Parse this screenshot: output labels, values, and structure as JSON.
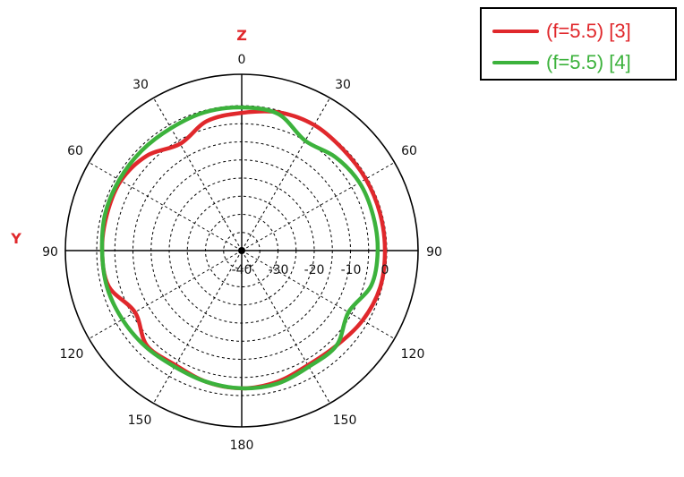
{
  "chart_data": {
    "type": "polar-line",
    "axis_names": {
      "top": "Z",
      "left": "Y"
    },
    "angle_labels": {
      "top": "0",
      "bottom": "180",
      "left_side": [
        "30",
        "60",
        "90",
        "120",
        "150"
      ],
      "right_side": [
        "30",
        "60",
        "90",
        "120",
        "150"
      ]
    },
    "radial_ticks": [
      "-40",
      "-30",
      "-20",
      "-10",
      "0"
    ],
    "r_range_db": [
      -40,
      0
    ],
    "grid": true,
    "legend_position": "top-right",
    "angle_deg": [
      0,
      15,
      30,
      45,
      60,
      75,
      90,
      105,
      120,
      135,
      150,
      165,
      180,
      195,
      210,
      225,
      240,
      255,
      270,
      285,
      300,
      315,
      330,
      345
    ],
    "series": [
      {
        "name": "(f=5.5) [3]",
        "color": "#e0282c",
        "values_db": [
          -2.0,
          -0.5,
          0.0,
          -0.5,
          -0.5,
          -0.5,
          -0.5,
          -0.5,
          -1.5,
          -3.0,
          -3.5,
          -2.5,
          -2.0,
          -2.5,
          -3.5,
          -3.0,
          -6.0,
          -2.0,
          -1.5,
          -1.5,
          -1.5,
          -3.0,
          -6.0,
          -3.0
        ]
      },
      {
        "name": "(f=5.5) [4]",
        "color": "#3cb23c",
        "values_db": [
          -0.5,
          -1.0,
          -5.0,
          -3.5,
          -2.5,
          -2.5,
          -2.5,
          -3.0,
          -6.0,
          -3.0,
          -3.0,
          -2.0,
          -2.0,
          -2.5,
          -3.0,
          -2.5,
          -2.0,
          -1.5,
          -1.5,
          -1.0,
          -1.0,
          -1.0,
          -1.0,
          -0.5
        ]
      }
    ]
  }
}
